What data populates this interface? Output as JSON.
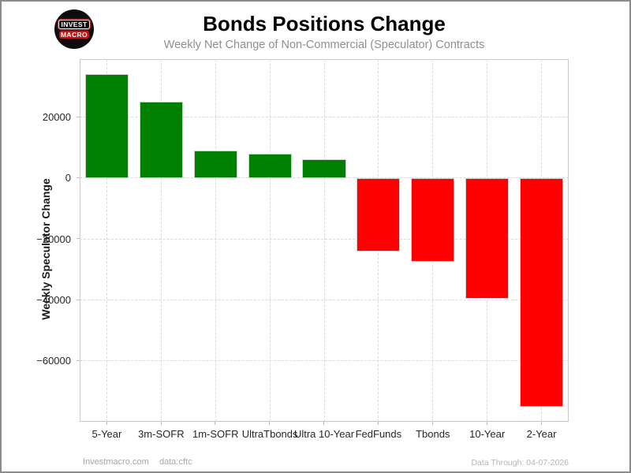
{
  "header": {
    "logo": {
      "line1": "INVEST",
      "line2": "MACRO"
    },
    "title": "Bonds Positions Change",
    "subtitle": "Weekly Net Change of Non-Commercial (Speculator) Contracts"
  },
  "chart_data": {
    "type": "bar",
    "title": "Bonds Positions Change",
    "subtitle": "Weekly Net Change of Non-Commercial (Speculator) Contracts",
    "categories": [
      "5-Year",
      "3m-SOFR",
      "1m-SOFR",
      "UltraTbonds",
      "Ultra 10-Year",
      "FedFunds",
      "Tbonds",
      "10-Year",
      "2-Year"
    ],
    "values": [
      34200,
      25100,
      9100,
      8000,
      6200,
      -24100,
      -27500,
      -39600,
      -75000
    ],
    "xlabel": "",
    "ylabel": "Weekly Speculator Change",
    "ylim": [
      -80000,
      39000
    ],
    "yticks": [
      20000,
      0,
      -20000,
      -40000,
      -60000
    ],
    "grid": "dashed",
    "legend": "none",
    "positive_color": "#008000",
    "negative_color": "#ff0000"
  },
  "footer": {
    "site": "Investmacro.com",
    "source": "data:cftc",
    "data_through": "Data Through: 04-07-2026"
  }
}
